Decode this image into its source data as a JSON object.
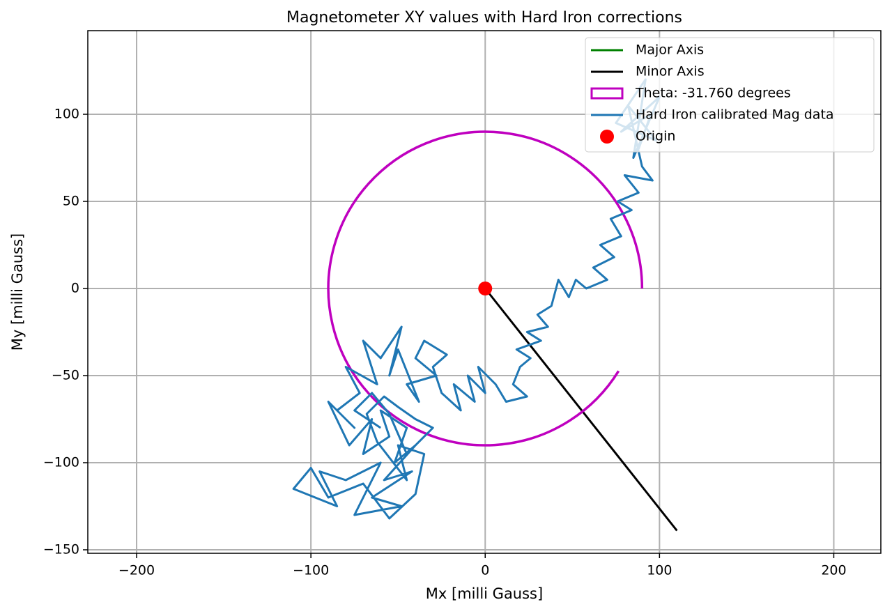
{
  "chart_data": {
    "type": "line",
    "title": "Magnetometer XY values with Hard Iron corrections",
    "xlabel": "Mx [milli Gauss]",
    "ylabel": "My [milli Gauss]",
    "xlim": [
      -228,
      227
    ],
    "ylim": [
      -152,
      148
    ],
    "xticks": [
      {
        "value": -200,
        "label": "−200"
      },
      {
        "value": -100,
        "label": "−100"
      },
      0,
      100,
      200
    ],
    "yticks": [
      {
        "value": -150,
        "label": "−150"
      },
      {
        "value": -100,
        "label": "−100"
      },
      {
        "value": -50,
        "label": "−50"
      },
      0,
      50,
      100
    ],
    "grid": true,
    "legend": "upper right",
    "series": [
      {
        "name": "Major Axis",
        "kind": "line",
        "color": "#008000"
      },
      {
        "name": "Minor Axis",
        "kind": "line",
        "color": "#000000",
        "x": [
          0,
          110
        ],
        "y": [
          0,
          -139
        ]
      },
      {
        "name": "Theta: -31.760 degrees",
        "kind": "arc",
        "color": "#bf00bf",
        "center": [
          0,
          0
        ],
        "width": 180,
        "height": 180,
        "theta1": 0,
        "theta2": 328.24
      },
      {
        "name": "Hard Iron calibrated Mag data",
        "kind": "line",
        "color": "#1f77b4",
        "x": [
          88,
          95,
          78,
          100,
          85,
          92,
          75,
          98,
          82,
          90,
          96,
          80,
          88,
          76,
          84,
          72,
          78,
          66,
          74,
          62,
          70,
          58,
          52,
          48,
          42,
          38,
          30,
          36,
          24,
          32,
          18,
          26,
          20,
          16,
          24,
          12,
          6,
          -4,
          0,
          -10,
          -6,
          -18,
          -14,
          -25,
          -30,
          -22,
          -35,
          -40,
          -28,
          -45,
          -38,
          -50,
          -55,
          -48,
          -60,
          -70,
          -62,
          -80,
          -72,
          -85,
          -75,
          -90,
          -78,
          -65,
          -70,
          -55,
          -60,
          -45,
          -52,
          -40,
          -58,
          -42,
          -65,
          -48,
          -75,
          -60,
          -80,
          -95,
          -85,
          -110,
          -100,
          -90,
          -70,
          -55,
          -40,
          -35,
          -50,
          -45,
          -62,
          -68,
          -58,
          -50,
          -40,
          -30,
          -45,
          -55,
          -65,
          -75,
          -60
        ],
        "y": [
          80,
          100,
          90,
          110,
          75,
          120,
          95,
          85,
          105,
          70,
          62,
          65,
          55,
          50,
          45,
          40,
          30,
          25,
          18,
          12,
          5,
          0,
          5,
          -5,
          5,
          -10,
          -15,
          -22,
          -25,
          -30,
          -35,
          -40,
          -45,
          -55,
          -62,
          -65,
          -55,
          -45,
          -60,
          -50,
          -65,
          -55,
          -70,
          -60,
          -45,
          -38,
          -30,
          -40,
          -50,
          -55,
          -65,
          -35,
          -50,
          -22,
          -40,
          -30,
          -55,
          -45,
          -60,
          -70,
          -80,
          -65,
          -90,
          -75,
          -95,
          -85,
          -70,
          -80,
          -100,
          -90,
          -110,
          -105,
          -120,
          -125,
          -130,
          -100,
          -110,
          -105,
          -125,
          -115,
          -103,
          -120,
          -112,
          -132,
          -118,
          -95,
          -90,
          -110,
          -88,
          -72,
          -62,
          -68,
          -75,
          -80,
          -95,
          -72,
          -60,
          -70,
          -80
        ]
      },
      {
        "name": "Origin",
        "kind": "marker",
        "color": "#ff0000",
        "x": [
          0
        ],
        "y": [
          0
        ]
      }
    ]
  }
}
